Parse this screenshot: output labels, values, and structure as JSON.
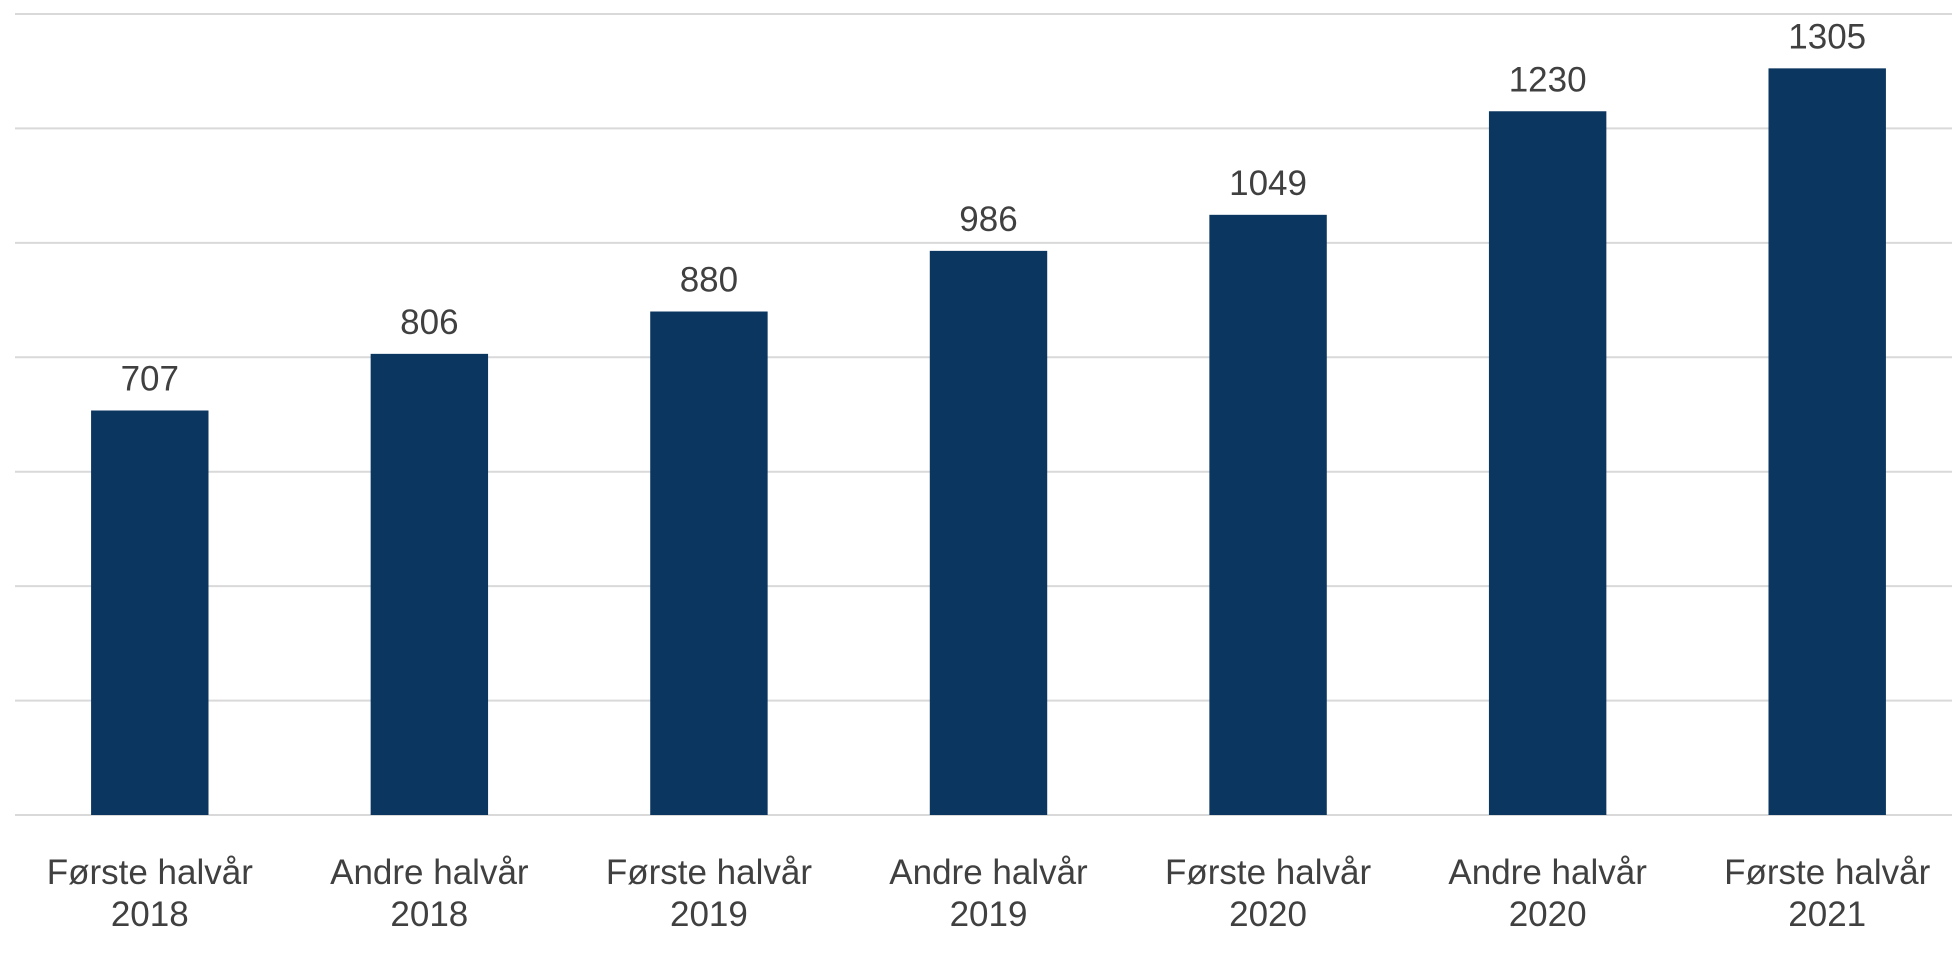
{
  "chart_data": {
    "type": "bar",
    "categories": [
      "Første halvår 2018",
      "Andre halvår 2018",
      "Første halvår 2019",
      "Andre halvår 2019",
      "Første halvår 2020",
      "Andre halvår 2020",
      "Første halvår 2021"
    ],
    "values": [
      707,
      806,
      880,
      986,
      1049,
      1230,
      1305
    ],
    "color": "#0b3660",
    "ylim": [
      0,
      1400
    ],
    "yticks": [
      0,
      200,
      400,
      600,
      800,
      1000,
      1200,
      1400
    ],
    "grid": true
  }
}
